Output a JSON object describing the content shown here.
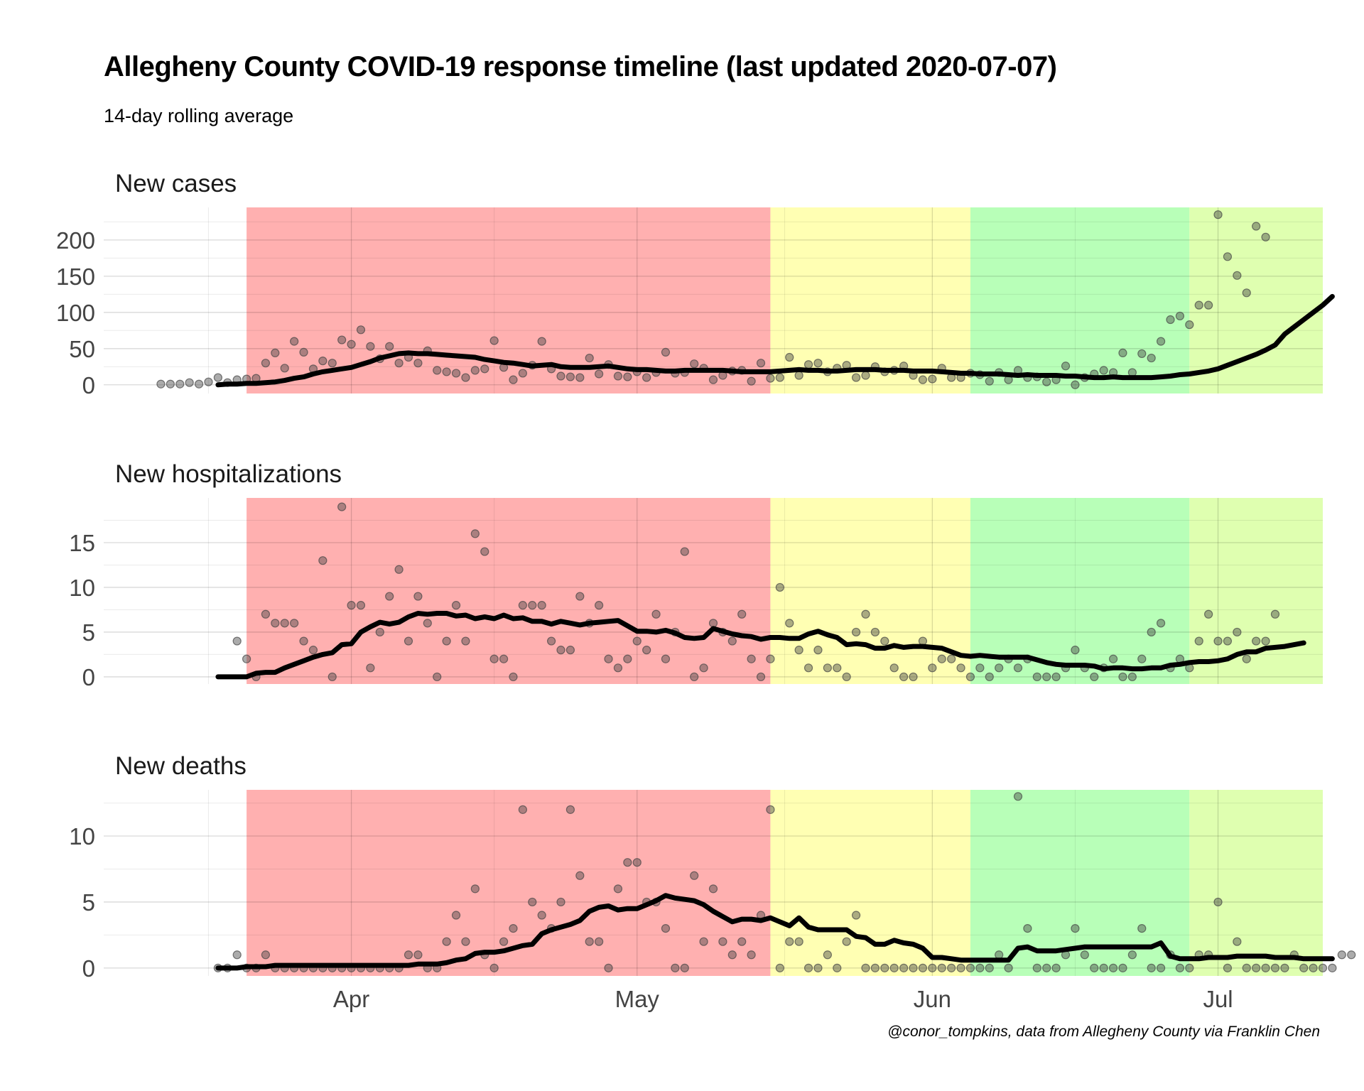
{
  "title": "Allegheny County COVID-19 response timeline (last updated 2020-07-07)",
  "subtitle": "14-day rolling average",
  "caption": "@conor_tompkins, data from Allegheny County via Franklin Chen",
  "chart_data": {
    "type": "scatter",
    "layout": "faceted vertical small multiples sharing x axis (date)",
    "x_axis": {
      "tick_labels": [
        "Apr",
        "May",
        "Jun",
        "Jul"
      ],
      "tick_dates": [
        "2020-04-01",
        "2020-05-01",
        "2020-06-01",
        "2020-07-01"
      ],
      "range": [
        "2020-03-06",
        "2020-07-12"
      ]
    },
    "phases": [
      {
        "start": "2020-03-21",
        "end": "2020-05-15",
        "color": "#ffb0b0"
      },
      {
        "start": "2020-05-15",
        "end": "2020-06-05",
        "color": "#ffffb3"
      },
      {
        "start": "2020-06-05",
        "end": "2020-06-28",
        "color": "#b8ffb8"
      },
      {
        "start": "2020-06-28",
        "end": "2020-07-12",
        "color": "#dfffb0"
      }
    ],
    "point_color": "#444444",
    "line_color": "#000000",
    "start_date": "2020-03-07",
    "panels": [
      {
        "title": "New cases",
        "ylim": [
          -12,
          245
        ],
        "y_ticks": [
          0,
          50,
          100,
          150,
          200
        ],
        "y_minor": [
          25,
          75,
          125,
          175,
          225
        ],
        "first_point_date": "2020-03-12",
        "daily": [
          1,
          1,
          1,
          3,
          1,
          4,
          10,
          3,
          7,
          8,
          9,
          30,
          44,
          23,
          60,
          45,
          22,
          33,
          30,
          62,
          56,
          76,
          53,
          36,
          53,
          30,
          38,
          30,
          47,
          20,
          18,
          16,
          10,
          20,
          22,
          61,
          24,
          7,
          16,
          27,
          60,
          22,
          12,
          11,
          10,
          37,
          15,
          28,
          12,
          11,
          18,
          10,
          17,
          45,
          16,
          17,
          29,
          23,
          7,
          13,
          19,
          20,
          5,
          30,
          9,
          10,
          38,
          13,
          28,
          30,
          18,
          23,
          27,
          10,
          13,
          25,
          18,
          20,
          26,
          13,
          7,
          8,
          23,
          10,
          10,
          16,
          14,
          5,
          17,
          7,
          20,
          10,
          11,
          4,
          7,
          26,
          0,
          10,
          15,
          20,
          17,
          44,
          17,
          43,
          37,
          60,
          90,
          95,
          83,
          110,
          110,
          235,
          177,
          151,
          127,
          219,
          204
        ],
        "average_start_date": "2020-03-18",
        "average": [
          0,
          1,
          1,
          2,
          2,
          3,
          4,
          6,
          9,
          11,
          15,
          18,
          20,
          22,
          24,
          28,
          32,
          37,
          40,
          43,
          44,
          43,
          43,
          42,
          41,
          40,
          39,
          38,
          35,
          33,
          31,
          30,
          28,
          26,
          27,
          28,
          25,
          24,
          24,
          24,
          25,
          26,
          24,
          22,
          21,
          21,
          20,
          19,
          19,
          20,
          20,
          20,
          20,
          20,
          19,
          18,
          18,
          18,
          18,
          19,
          20,
          21,
          20,
          20,
          19,
          19,
          20,
          21,
          21,
          21,
          20,
          20,
          20,
          19,
          19,
          19,
          18,
          17,
          16,
          16,
          15,
          15,
          15,
          14,
          13,
          14,
          13,
          13,
          13,
          12,
          12,
          11,
          10,
          10,
          11,
          10,
          10,
          10,
          10,
          11,
          12,
          14,
          15,
          17,
          19,
          22,
          27,
          32,
          37,
          42,
          48,
          55,
          70,
          80,
          90,
          100,
          110,
          122
        ]
      },
      {
        "title": "New hospitalizations",
        "ylim": [
          -0.8,
          20
        ],
        "y_ticks": [
          0,
          5,
          10,
          15
        ],
        "y_minor": [
          2.5,
          7.5,
          12.5,
          17.5
        ],
        "first_point_date": "2020-03-20",
        "daily": [
          4,
          2,
          0,
          7,
          6,
          6,
          6,
          4,
          3,
          13,
          0,
          19,
          8,
          8,
          1,
          5,
          9,
          12,
          4,
          9,
          6,
          0,
          4,
          8,
          4,
          16,
          14,
          2,
          2,
          0,
          8,
          8,
          8,
          4,
          3,
          3,
          9,
          6,
          8,
          2,
          1,
          2,
          4,
          3,
          7,
          2,
          5,
          14,
          0,
          1,
          6,
          5,
          4,
          7,
          2,
          0,
          2,
          10,
          6,
          3,
          1,
          3,
          1,
          1,
          0,
          5,
          7,
          5,
          4,
          1,
          0,
          0,
          4,
          1,
          2,
          2,
          1,
          0,
          1,
          0,
          1,
          2,
          1,
          2,
          0,
          0,
          0,
          1,
          3,
          1,
          0,
          1,
          2,
          0,
          0,
          2,
          5,
          6,
          1,
          2,
          1,
          4,
          7,
          4,
          4,
          5,
          2,
          4,
          4,
          7
        ],
        "average_start_date": "2020-03-18",
        "average": [
          0,
          0,
          0,
          0,
          0.4,
          0.5,
          0.5,
          1,
          1.4,
          1.8,
          2.2,
          2.5,
          2.7,
          3.6,
          3.7,
          5,
          5.6,
          6.1,
          5.9,
          6.1,
          6.7,
          7.1,
          7,
          7.1,
          7.1,
          6.8,
          6.9,
          6.5,
          6.7,
          6.5,
          6.9,
          6.5,
          6.6,
          6.2,
          6.2,
          5.9,
          6.2,
          6,
          5.8,
          6,
          6.1,
          6.2,
          6.3,
          5.7,
          5.1,
          5.1,
          5,
          5.2,
          4.9,
          4.4,
          4.3,
          4.4,
          5.4,
          5.1,
          4.8,
          4.6,
          4.5,
          4.2,
          4.4,
          4.4,
          4.3,
          4.3,
          4.8,
          5.1,
          4.7,
          4.4,
          3.6,
          3.7,
          3.6,
          3.2,
          3.2,
          3.5,
          3.3,
          3.4,
          3.4,
          3.3,
          3.2,
          2.8,
          2.4,
          2.3,
          2.4,
          2.3,
          2.2,
          2.2,
          2.2,
          2.2,
          1.9,
          1.6,
          1.4,
          1.3,
          1.3,
          1.3,
          1.2,
          0.9,
          1,
          1,
          0.9,
          0.9,
          1,
          1,
          1.3,
          1.4,
          1.6,
          1.7,
          1.7,
          1.8,
          2,
          2.5,
          2.8,
          2.8,
          3.2,
          3.3,
          3.4,
          3.6,
          3.8
        ]
      },
      {
        "title": "New deaths",
        "ylim": [
          -0.6,
          13.5
        ],
        "y_ticks": [
          0,
          5,
          10
        ],
        "y_minor": [
          2.5,
          7.5,
          12.5
        ],
        "first_point_date": "2020-03-18",
        "daily": [
          0,
          0,
          1,
          0,
          0,
          1,
          0,
          0,
          0,
          0,
          0,
          0,
          0,
          0,
          0,
          0,
          0,
          0,
          0,
          0,
          1,
          1,
          0,
          0,
          2,
          4,
          2,
          6,
          1,
          0,
          2,
          3,
          12,
          5,
          4,
          3,
          5,
          12,
          7,
          2,
          2,
          0,
          6,
          8,
          8,
          5,
          5,
          3,
          0,
          0,
          7,
          2,
          6,
          2,
          1,
          2,
          1,
          4,
          12,
          0,
          2,
          2,
          0,
          0,
          1,
          0,
          2,
          4,
          0,
          0,
          0,
          0,
          0,
          0,
          0,
          0,
          0,
          0,
          0,
          0,
          0,
          0,
          1,
          0,
          13,
          3,
          0,
          0,
          0,
          1,
          3,
          1,
          0,
          0,
          0,
          0,
          1,
          3,
          0,
          0,
          1,
          0,
          0,
          1,
          1,
          5,
          0,
          2,
          0,
          0,
          0,
          0,
          0,
          1,
          0,
          0,
          0,
          0,
          1,
          1
        ],
        "average_start_date": "2020-03-18",
        "average": [
          0,
          0,
          0,
          0.1,
          0.1,
          0.1,
          0.2,
          0.2,
          0.2,
          0.2,
          0.2,
          0.2,
          0.2,
          0.2,
          0.2,
          0.2,
          0.2,
          0.2,
          0.2,
          0.2,
          0.2,
          0.3,
          0.3,
          0.3,
          0.4,
          0.6,
          0.7,
          1.1,
          1.2,
          1.2,
          1.3,
          1.5,
          1.7,
          1.8,
          2.6,
          2.9,
          3.1,
          3.3,
          3.6,
          4.3,
          4.6,
          4.7,
          4.4,
          4.5,
          4.5,
          4.8,
          5.1,
          5.5,
          5.3,
          5.2,
          5.1,
          4.8,
          4.3,
          3.9,
          3.5,
          3.7,
          3.7,
          3.6,
          3.8,
          3.5,
          3.2,
          3.8,
          3.1,
          2.9,
          2.9,
          2.9,
          2.9,
          2.4,
          2.3,
          1.8,
          1.8,
          2.1,
          1.9,
          1.8,
          1.5,
          0.8,
          0.8,
          0.7,
          0.6,
          0.6,
          0.6,
          0.6,
          0.6,
          0.6,
          1.5,
          1.6,
          1.3,
          1.3,
          1.3,
          1.4,
          1.5,
          1.6,
          1.6,
          1.6,
          1.6,
          1.6,
          1.6,
          1.6,
          1.6,
          1.9,
          0.9,
          0.7,
          0.7,
          0.7,
          0.8,
          0.8,
          0.8,
          0.9,
          0.9,
          0.9,
          0.9,
          0.8,
          0.8,
          0.8,
          0.7,
          0.7,
          0.7,
          0.7
        ]
      }
    ]
  }
}
